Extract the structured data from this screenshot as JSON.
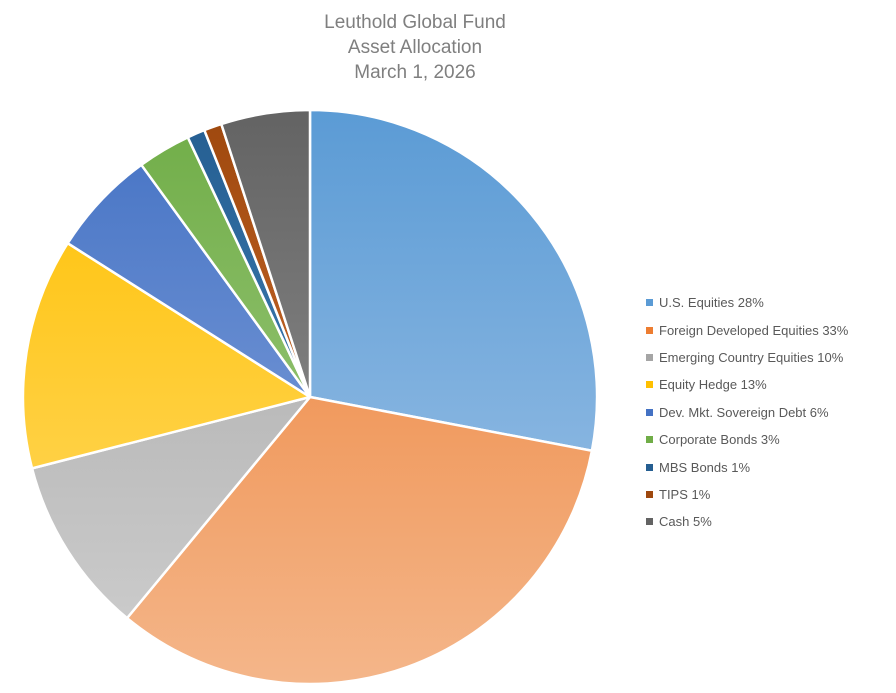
{
  "chart_data": {
    "type": "pie",
    "title": "Leuthold Global Fund",
    "subtitle": [
      "Asset Allocation",
      "March 1, 2026"
    ],
    "categories": [
      "U.S. Equities",
      "Foreign Developed Equities",
      "Emerging Country Equities",
      "Equity Hedge",
      "Dev. Mkt. Sovereign Debt",
      "Corporate Bonds",
      "MBS Bonds",
      "TIPS",
      "Cash"
    ],
    "values": [
      28,
      33,
      10,
      13,
      6,
      3,
      1,
      1,
      5
    ],
    "unit": "%",
    "colors": [
      "#5b9bd5",
      "#ed7d31",
      "#a5a5a5",
      "#ffc000",
      "#4472c4",
      "#70ad47",
      "#255e91",
      "#9e480e",
      "#636363"
    ],
    "colors_light": [
      "#a4c6e8",
      "#f4b68a",
      "#cfcfcf",
      "#ffdb6e",
      "#8eaadf",
      "#a8d08d",
      "#4a8ec6",
      "#e07b39",
      "#9a9a9a"
    ],
    "legend_position": "right",
    "start_angle_deg": 0,
    "direction": "clockwise"
  },
  "title": {
    "line1": "Leuthold Global Fund",
    "line2": "Asset Allocation",
    "line3": "March 1, 2026"
  },
  "legend": [
    {
      "label": "U.S. Equities 28%",
      "color": "#5b9bd5"
    },
    {
      "label": "Foreign Developed Equities 33%",
      "color": "#ed7d31"
    },
    {
      "label": "Emerging Country Equities 10%",
      "color": "#a5a5a5"
    },
    {
      "label": "Equity Hedge 13%",
      "color": "#ffc000"
    },
    {
      "label": "Dev. Mkt. Sovereign Debt 6%",
      "color": "#4472c4"
    },
    {
      "label": "Corporate Bonds 3%",
      "color": "#70ad47"
    },
    {
      "label": "MBS Bonds 1%",
      "color": "#255e91"
    },
    {
      "label": "TIPS 1%",
      "color": "#9e480e"
    },
    {
      "label": "Cash 5%",
      "color": "#636363"
    }
  ]
}
